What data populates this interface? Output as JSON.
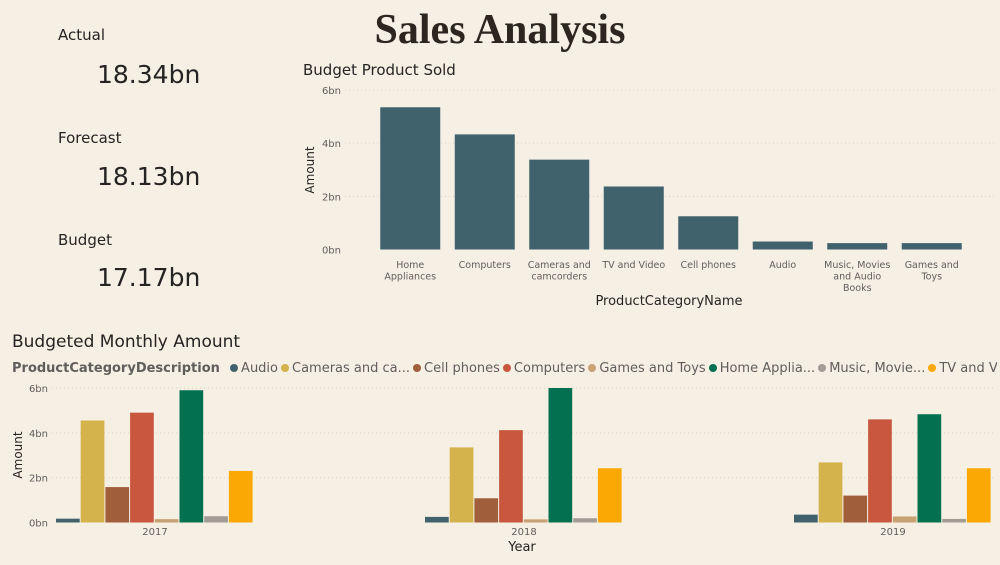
{
  "title": "Sales Analysis",
  "kpis": [
    {
      "label": "Actual",
      "value": "18.34bn"
    },
    {
      "label": "Forecast",
      "value": "18.13bn"
    },
    {
      "label": "Budget",
      "value": "17.17bn"
    }
  ],
  "colors": {
    "bar_top": "#40626c",
    "Audio": "#40626c",
    "Cameras": "#d4b24c",
    "CellPhones": "#a05f3a",
    "Computers": "#c8573d",
    "Games": "#c9a273",
    "Home": "#03714f",
    "Music": "#a19d95",
    "TV": "#fca804"
  },
  "chart_data": [
    {
      "type": "bar",
      "title": "Budget Product Sold",
      "xlabel": "ProductCategoryName",
      "ylabel": "Amount",
      "ylim": [
        0,
        6
      ],
      "yticks": [
        "0bn",
        "2bn",
        "4bn",
        "6bn"
      ],
      "categories": [
        [
          "Home",
          "Appliances"
        ],
        [
          "Computers"
        ],
        [
          "Cameras and",
          "camcorders"
        ],
        [
          "TV and Video"
        ],
        [
          "Cell phones"
        ],
        [
          "Audio"
        ],
        [
          "Music, Movies",
          "and Audio",
          "Books"
        ],
        [
          "Games and",
          "Toys"
        ]
      ],
      "values": [
        5.35,
        4.33,
        3.38,
        2.37,
        1.25,
        0.3,
        0.24,
        0.24
      ],
      "unit": "bn",
      "grid": true
    },
    {
      "type": "bar",
      "title": "Budgeted Monthly Amount",
      "xlabel": "Year",
      "ylabel": "Amount",
      "ylim": [
        0,
        6
      ],
      "yticks": [
        "0bn",
        "2bn",
        "4bn",
        "6bn"
      ],
      "categories": [
        "2017",
        "2018",
        "2019"
      ],
      "legend_title": "ProductCategoryDescription",
      "series": [
        {
          "name": "Audio",
          "legend": "Audio",
          "color_key": "Audio",
          "values": [
            0.17,
            0.25,
            0.35
          ]
        },
        {
          "name": "Cameras and camcorders",
          "legend": "Cameras and ca...",
          "color_key": "Cameras",
          "values": [
            4.55,
            3.35,
            2.68
          ]
        },
        {
          "name": "Cell phones",
          "legend": "Cell phones",
          "color_key": "CellPhones",
          "values": [
            1.58,
            1.08,
            1.2
          ]
        },
        {
          "name": "Computers",
          "legend": "Computers",
          "color_key": "Computers",
          "values": [
            4.9,
            4.12,
            4.6
          ]
        },
        {
          "name": "Games and Toys",
          "legend": "Games and Toys",
          "color_key": "Games",
          "values": [
            0.15,
            0.14,
            0.27
          ]
        },
        {
          "name": "Home Appliances",
          "legend": "Home Applia...",
          "color_key": "Home",
          "values": [
            5.9,
            6.0,
            4.83
          ]
        },
        {
          "name": "Music, Movies and Audio Books",
          "legend": "Music, Movie...",
          "color_key": "Music",
          "values": [
            0.28,
            0.19,
            0.16
          ]
        },
        {
          "name": "TV and Video",
          "legend": "TV and Video",
          "color_key": "TV",
          "values": [
            2.3,
            2.42,
            2.42
          ]
        }
      ],
      "grid": true
    }
  ]
}
